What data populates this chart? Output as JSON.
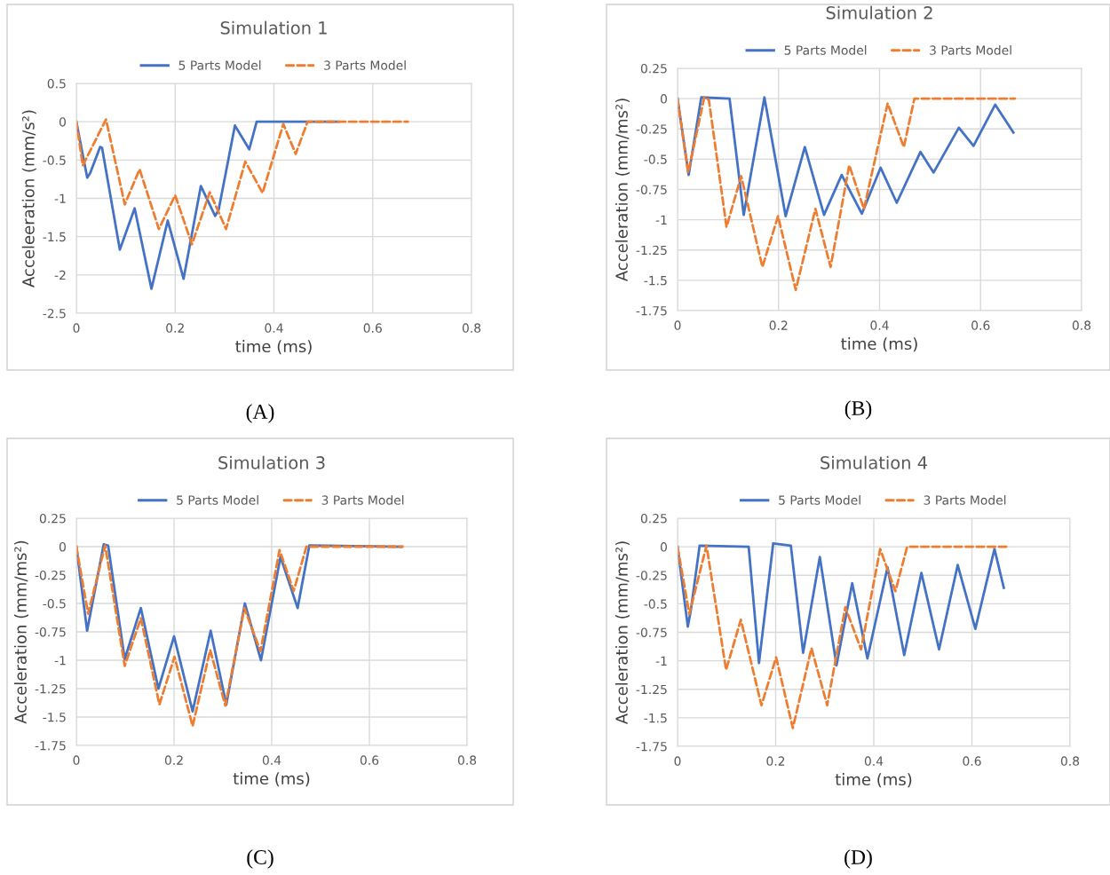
{
  "chart_data": [
    {
      "type": "line",
      "title": "Simulation 1",
      "xlabel": "time (ms)",
      "ylabel": "Acceleeration (mm/s²)",
      "annotations": [
        "(A)"
      ],
      "legend": "top",
      "grid": true,
      "xlim": [
        0,
        0.8
      ],
      "xticks": [
        0,
        0.2,
        0.4,
        0.6,
        0.8
      ],
      "ylim": [
        -2.5,
        0.5
      ],
      "yticks": [
        -2.5,
        -2,
        -1.5,
        -1,
        -0.5,
        0,
        0.5
      ],
      "series": [
        {
          "name": "5 Parts Model",
          "color": "#4472c4",
          "line_style": "solid",
          "x": [
            0,
            0.022,
            0.028,
            0.048,
            0.052,
            0.088,
            0.118,
            0.152,
            0.185,
            0.217,
            0.252,
            0.281,
            0.288,
            0.321,
            0.35,
            0.365,
            0.53
          ],
          "values": [
            0,
            -0.73,
            -0.67,
            -0.33,
            -0.34,
            -1.67,
            -1.13,
            -2.18,
            -1.29,
            -2.05,
            -0.84,
            -1.23,
            -1.15,
            -0.05,
            -0.36,
            0,
            0
          ]
        },
        {
          "name": "3 Parts Model",
          "color": "#ed7d31",
          "line_style": "dashed",
          "x": [
            0,
            0.013,
            0.06,
            0.098,
            0.128,
            0.167,
            0.2,
            0.234,
            0.27,
            0.303,
            0.342,
            0.377,
            0.419,
            0.444,
            0.468,
            0.671
          ],
          "values": [
            0,
            -0.57,
            0.03,
            -1.08,
            -0.62,
            -1.4,
            -0.96,
            -1.6,
            -0.92,
            -1.4,
            -0.52,
            -0.93,
            -0.03,
            -0.42,
            0,
            0
          ]
        }
      ]
    },
    {
      "type": "line",
      "title": "Simulation 2",
      "xlabel": "time (ms)",
      "ylabel": "Acceleration (mm/ms²)",
      "annotations": [
        "(B)"
      ],
      "legend": "top",
      "grid": true,
      "xlim": [
        0,
        0.8
      ],
      "xticks": [
        0,
        0.2,
        0.4,
        0.6,
        0.8
      ],
      "ylim": [
        -1.75,
        0.25
      ],
      "yticks": [
        -1.75,
        -1.5,
        -1.25,
        -1,
        -0.75,
        -0.5,
        -0.25,
        0,
        0.25
      ],
      "series": [
        {
          "name": "5 Parts Model",
          "color": "#4472c4",
          "line_style": "solid",
          "x": [
            0,
            0.022,
            0.047,
            0.103,
            0.131,
            0.172,
            0.214,
            0.252,
            0.29,
            0.325,
            0.365,
            0.402,
            0.434,
            0.481,
            0.507,
            0.557,
            0.586,
            0.629,
            0.665
          ],
          "values": [
            0,
            -0.63,
            0.01,
            0,
            -0.96,
            0.01,
            -0.97,
            -0.4,
            -0.96,
            -0.63,
            -0.95,
            -0.57,
            -0.86,
            -0.44,
            -0.61,
            -0.24,
            -0.39,
            -0.05,
            -0.28
          ]
        },
        {
          "name": "3 Parts Model",
          "color": "#ed7d31",
          "line_style": "dashed",
          "x": [
            0,
            0.021,
            0.053,
            0.062,
            0.097,
            0.126,
            0.168,
            0.199,
            0.234,
            0.273,
            0.303,
            0.34,
            0.369,
            0.416,
            0.448,
            0.469,
            0.668
          ],
          "values": [
            0,
            -0.61,
            0.01,
            -0.01,
            -1.06,
            -0.64,
            -1.39,
            -0.97,
            -1.58,
            -0.91,
            -1.39,
            -0.55,
            -0.91,
            -0.04,
            -0.4,
            0,
            0
          ]
        }
      ]
    },
    {
      "type": "line",
      "title": "Simulation 3",
      "xlabel": "time (ms)",
      "ylabel": "Acceleration (mm/ms²)",
      "annotations": [
        "(C)"
      ],
      "legend": "top",
      "grid": true,
      "xlim": [
        0,
        0.8
      ],
      "xticks": [
        0,
        0.2,
        0.4,
        0.6,
        0.8
      ],
      "ylim": [
        -1.75,
        0.25
      ],
      "yticks": [
        -1.75,
        -1.5,
        -1.25,
        -1,
        -0.75,
        -0.5,
        -0.25,
        0,
        0.25
      ],
      "series": [
        {
          "name": "5 Parts Model",
          "color": "#4472c4",
          "line_style": "solid",
          "x": [
            0,
            0.022,
            0.056,
            0.065,
            0.099,
            0.132,
            0.168,
            0.2,
            0.238,
            0.275,
            0.307,
            0.345,
            0.378,
            0.418,
            0.453,
            0.477,
            0.665
          ],
          "values": [
            0,
            -0.74,
            0.02,
            0.01,
            -0.99,
            -0.54,
            -1.25,
            -0.79,
            -1.45,
            -0.74,
            -1.39,
            -0.5,
            -1,
            -0.09,
            -0.54,
            0.01,
            0
          ]
        },
        {
          "name": "3 Parts Model",
          "color": "#ed7d31",
          "line_style": "dashed",
          "x": [
            0,
            0.024,
            0.059,
            0.099,
            0.132,
            0.17,
            0.201,
            0.238,
            0.274,
            0.305,
            0.344,
            0.377,
            0.416,
            0.445,
            0.471,
            0.668
          ],
          "values": [
            0,
            -0.59,
            0.01,
            -1.05,
            -0.63,
            -1.39,
            -0.97,
            -1.58,
            -0.91,
            -1.4,
            -0.54,
            -0.92,
            -0.03,
            -0.39,
            0,
            0
          ]
        }
      ]
    },
    {
      "type": "line",
      "title": "Simulation 4",
      "xlabel": "time (ms)",
      "ylabel": "Acceleration (mm/ms²)",
      "annotations": [
        "(D)"
      ],
      "legend": "top",
      "grid": true,
      "xlim": [
        0,
        0.8
      ],
      "xticks": [
        0,
        0.2,
        0.4,
        0.6,
        0.8
      ],
      "ylim": [
        -1.75,
        0.25
      ],
      "yticks": [
        -1.75,
        -1.5,
        -1.25,
        -1,
        -0.75,
        -0.5,
        -0.25,
        0,
        0.25
      ],
      "series": [
        {
          "name": "5 Parts Model",
          "color": "#4472c4",
          "line_style": "solid",
          "x": [
            0,
            0.021,
            0.027,
            0.045,
            0.145,
            0.166,
            0.195,
            0.231,
            0.256,
            0.29,
            0.324,
            0.356,
            0.387,
            0.428,
            0.462,
            0.497,
            0.533,
            0.571,
            0.607,
            0.646,
            0.665
          ],
          "values": [
            0,
            -0.7,
            -0.56,
            0.01,
            0,
            -1.02,
            0.03,
            0.01,
            -0.93,
            -0.09,
            -1.04,
            -0.32,
            -0.98,
            -0.18,
            -0.95,
            -0.23,
            -0.9,
            -0.16,
            -0.72,
            -0.02,
            -0.36
          ]
        },
        {
          "name": "3 Parts Model",
          "color": "#ed7d31",
          "line_style": "dashed",
          "x": [
            0,
            0.024,
            0.059,
            0.099,
            0.129,
            0.171,
            0.201,
            0.235,
            0.273,
            0.305,
            0.342,
            0.374,
            0.413,
            0.444,
            0.468,
            0.67
          ],
          "values": [
            0,
            -0.59,
            0.01,
            -1.08,
            -0.64,
            -1.39,
            -0.97,
            -1.59,
            -0.89,
            -1.39,
            -0.53,
            -0.9,
            -0.02,
            -0.39,
            0,
            0
          ]
        }
      ]
    }
  ]
}
